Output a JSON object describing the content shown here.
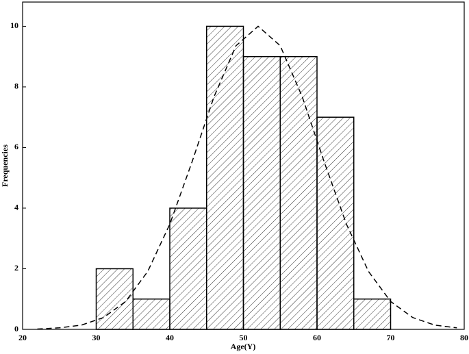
{
  "chart_data": {
    "type": "histogram",
    "x_label": "Age(Y)",
    "y_label": "Frequencies",
    "bins": [
      30,
      35,
      40,
      45,
      50,
      55,
      60,
      65,
      70
    ],
    "values": [
      2,
      1,
      4,
      10,
      9,
      9,
      7,
      1
    ],
    "color": "#000000",
    "hatch": true,
    "curve": {
      "x": [
        22,
        25,
        28,
        31,
        34,
        37,
        40,
        43,
        46,
        49,
        52,
        55,
        58,
        61,
        64,
        67,
        70,
        73,
        76,
        79
      ],
      "values": [
        0.01,
        0.05,
        0.14,
        0.39,
        0.92,
        1.91,
        3.47,
        5.51,
        7.67,
        9.36,
        10,
        9.36,
        7.67,
        5.51,
        3.47,
        1.91,
        0.92,
        0.39,
        0.14,
        0.05
      ]
    },
    "xlim": [
      20,
      80
    ],
    "xticks": [
      20,
      30,
      40,
      50,
      60,
      70,
      80
    ],
    "ylim": [
      0,
      10.8
    ],
    "yticks": [
      0,
      2,
      4,
      6,
      8,
      10
    ]
  }
}
